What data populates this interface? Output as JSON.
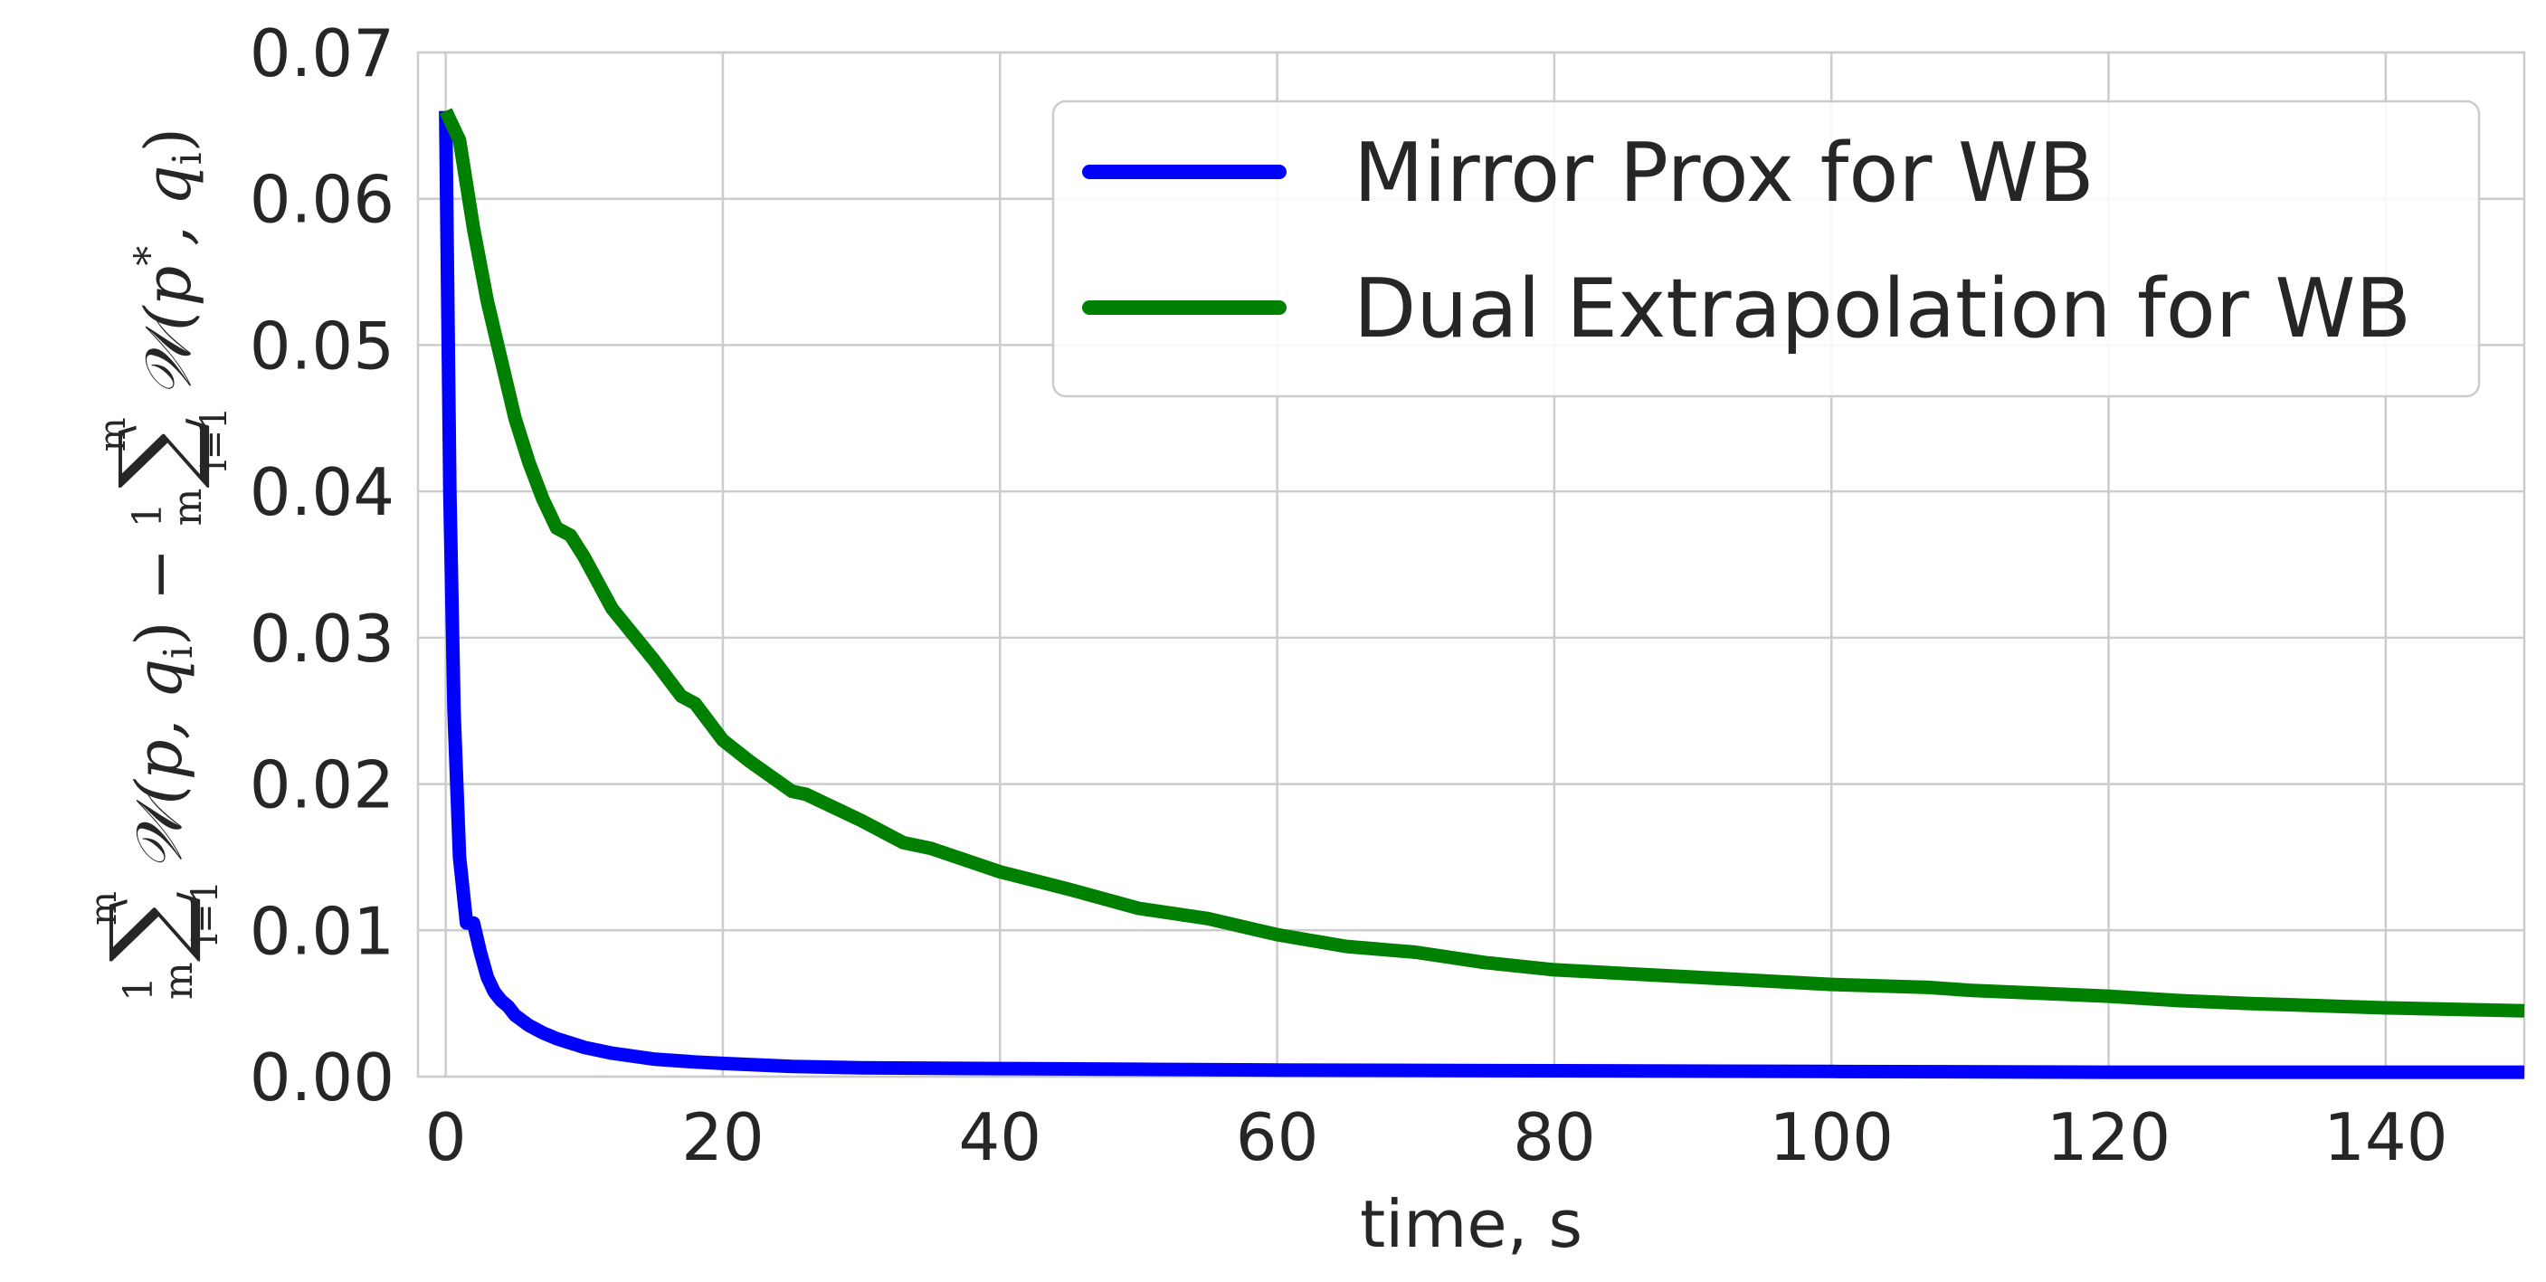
{
  "chart_data": {
    "type": "line",
    "xlabel": "time, s",
    "ylabel": "1/m ∑_{i=1}^{m} 𝒲(p, q_i) − 1/m ∑_{i=1}^{m} 𝒲(p*, q_i)",
    "xlim": [
      -2,
      150
    ],
    "ylim": [
      0,
      0.07
    ],
    "xticks": [
      "0",
      "20",
      "40",
      "60",
      "80",
      "100",
      "120",
      "140"
    ],
    "yticks": [
      "0.00",
      "0.01",
      "0.02",
      "0.03",
      "0.04",
      "0.05",
      "0.06",
      "0.07"
    ],
    "grid": true,
    "legend_position": "top-right",
    "series": [
      {
        "name": "Mirror Prox for WB",
        "color": "#0000ff",
        "x": [
          0,
          0.3,
          0.6,
          1.0,
          1.5,
          2.0,
          2.5,
          3.0,
          3.5,
          4.0,
          4.5,
          5.0,
          6,
          7,
          8,
          9,
          10,
          12,
          15,
          18,
          20,
          25,
          30,
          40,
          50,
          60,
          80,
          100,
          120,
          150
        ],
        "y": [
          0.066,
          0.04,
          0.025,
          0.015,
          0.0105,
          0.0105,
          0.0085,
          0.0068,
          0.0058,
          0.0052,
          0.0048,
          0.0042,
          0.0035,
          0.003,
          0.0026,
          0.0023,
          0.002,
          0.0016,
          0.0012,
          0.001,
          0.0009,
          0.0007,
          0.0006,
          0.00055,
          0.0005,
          0.00045,
          0.0004,
          0.00035,
          0.0003,
          0.0003
        ]
      },
      {
        "name": "Dual Extrapolation for WB",
        "color": "#008000",
        "x": [
          0,
          1,
          2,
          3,
          4,
          5,
          6,
          7,
          8,
          9,
          10,
          12,
          15,
          17,
          18,
          20,
          22,
          25,
          26,
          30,
          33,
          35,
          40,
          45,
          50,
          55,
          60,
          65,
          70,
          75,
          80,
          90,
          100,
          107,
          110,
          120,
          125,
          130,
          140,
          150
        ],
        "y": [
          0.066,
          0.064,
          0.058,
          0.053,
          0.049,
          0.045,
          0.042,
          0.0395,
          0.0375,
          0.037,
          0.0355,
          0.032,
          0.0285,
          0.026,
          0.0255,
          0.023,
          0.0215,
          0.0195,
          0.0193,
          0.0175,
          0.016,
          0.0156,
          0.014,
          0.0128,
          0.0115,
          0.0108,
          0.0097,
          0.0089,
          0.0085,
          0.0078,
          0.0073,
          0.0068,
          0.0063,
          0.0061,
          0.0059,
          0.0055,
          0.0052,
          0.005,
          0.0047,
          0.0045
        ]
      }
    ]
  }
}
